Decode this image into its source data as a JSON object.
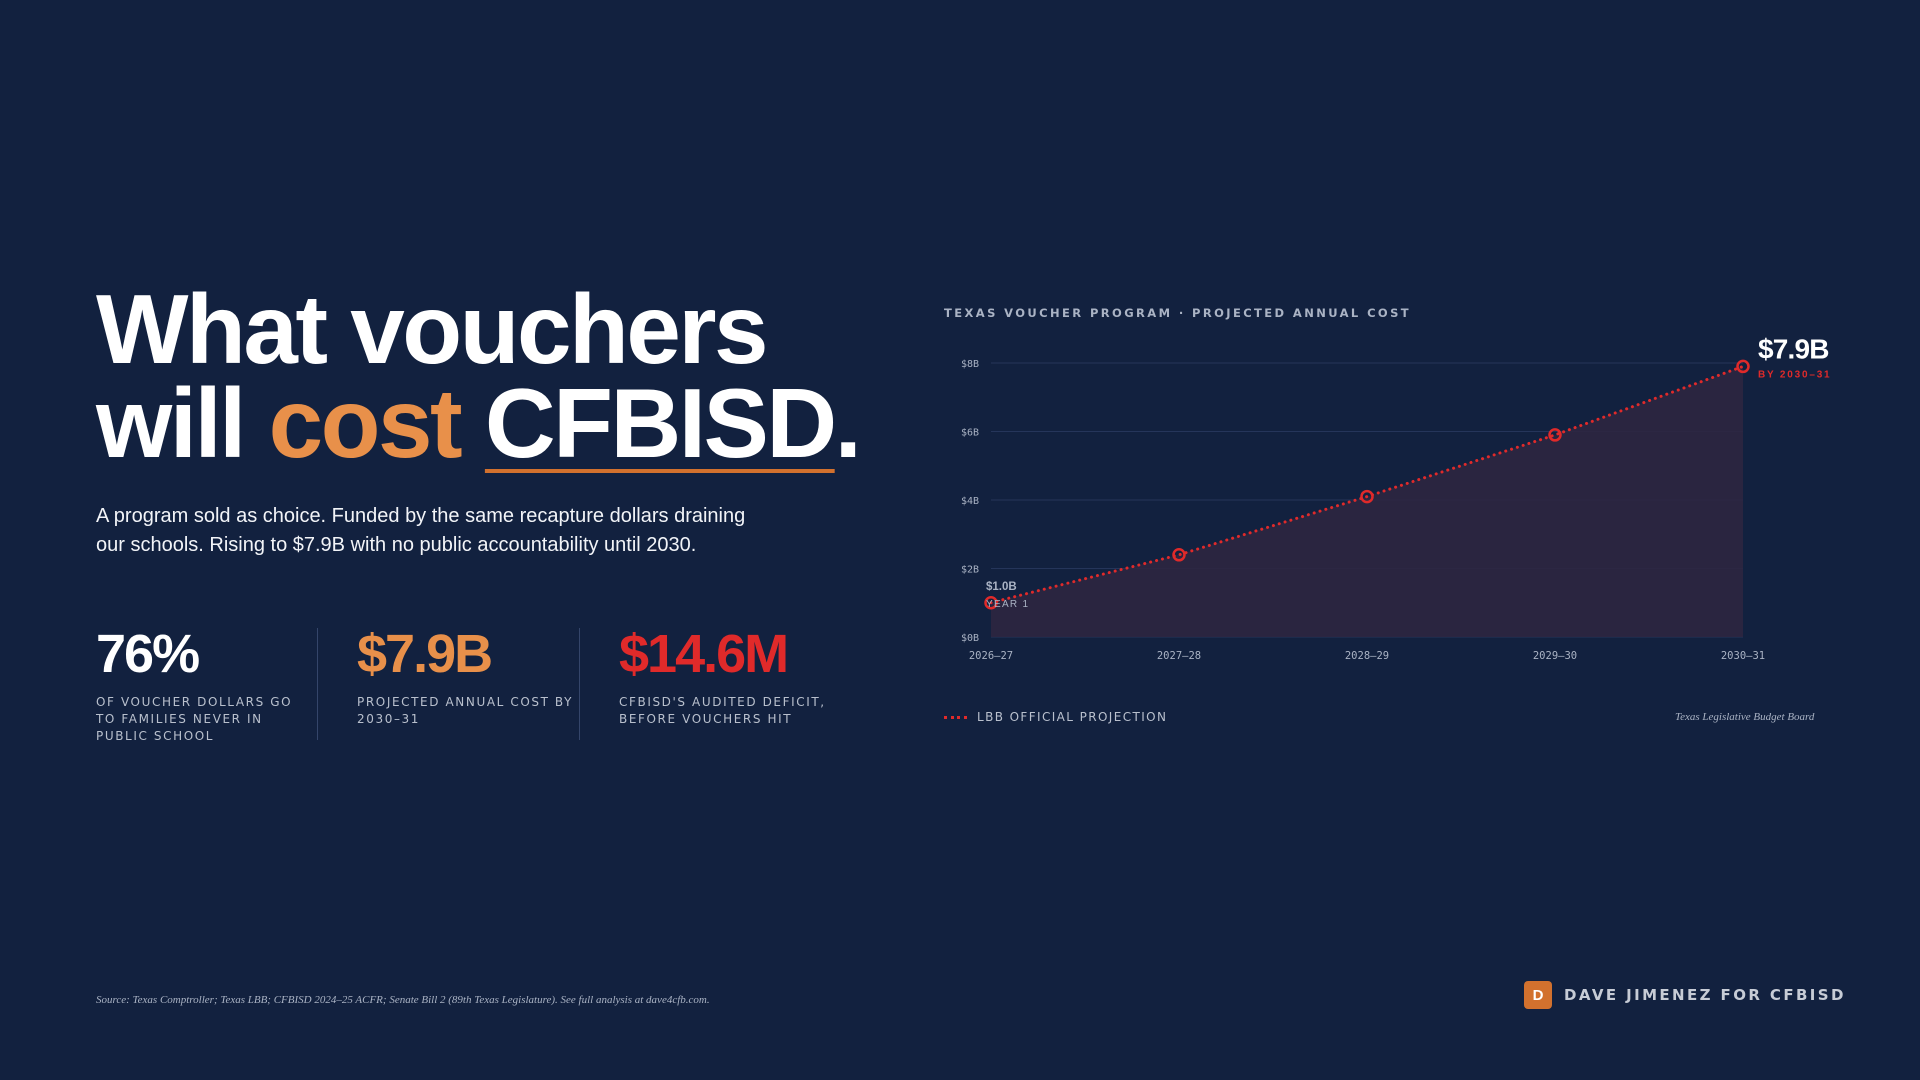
{
  "headline": {
    "line1": "What vouchers",
    "line2_prefix": "will ",
    "line2_accent": "cost",
    "line2_space": " ",
    "line2_underlined": "CFBISD",
    "line2_end": "."
  },
  "subhead": "A program sold as choice. Funded by the same recapture dollars draining our schools. Rising to $7.9B with no public accountability until 2030.",
  "stats": [
    {
      "value": "76%",
      "label": "OF VOUCHER DOLLARS GO TO FAMILIES NEVER IN PUBLIC SCHOOL"
    },
    {
      "value": "$7.9B",
      "label": "PROJECTED ANNUAL COST BY 2030–31"
    },
    {
      "value": "$14.6M",
      "label": "CFBISD'S AUDITED DEFICIT, BEFORE VOUCHERS HIT"
    }
  ],
  "chart_data": {
    "type": "line",
    "title": "TEXAS VOUCHER PROGRAM · PROJECTED ANNUAL COST",
    "categories": [
      "2026–27",
      "2027–28",
      "2028–29",
      "2029–30",
      "2030–31"
    ],
    "series": [
      {
        "name": "LBB OFFICIAL PROJECTION",
        "values": [
          1.0,
          2.4,
          4.1,
          5.9,
          7.9
        ]
      }
    ],
    "y_ticks": [
      0,
      2,
      4,
      6,
      8
    ],
    "y_tick_labels": [
      "$0B",
      "$2B",
      "$4B",
      "$6B",
      "$8B"
    ],
    "ylim": [
      0,
      8
    ],
    "annotations": {
      "start_value": "$1.0B",
      "start_label": "YEAR 1",
      "end_value": "$7.9B",
      "end_label": "BY 2030–31"
    },
    "grid": true,
    "legend_position": "bottom-left",
    "source": "Texas Legislative Budget Board",
    "colors": {
      "line": "#e02a2a",
      "area": "#2e2640",
      "grid": "#25355a",
      "tick": "#aab3c4"
    }
  },
  "footnote": "Source: Texas Comptroller; Texas LBB; CFBISD 2024–25 ACFR; Senate Bill 2 (89th Texas Legislature). See full analysis at dave4cfb.com.",
  "brand": {
    "badge": "D",
    "name": "DAVE JIMENEZ FOR CFBISD"
  },
  "colors": {
    "background": "#12213f",
    "accent_orange": "#e8904a",
    "accent_red": "#e02a2a"
  }
}
